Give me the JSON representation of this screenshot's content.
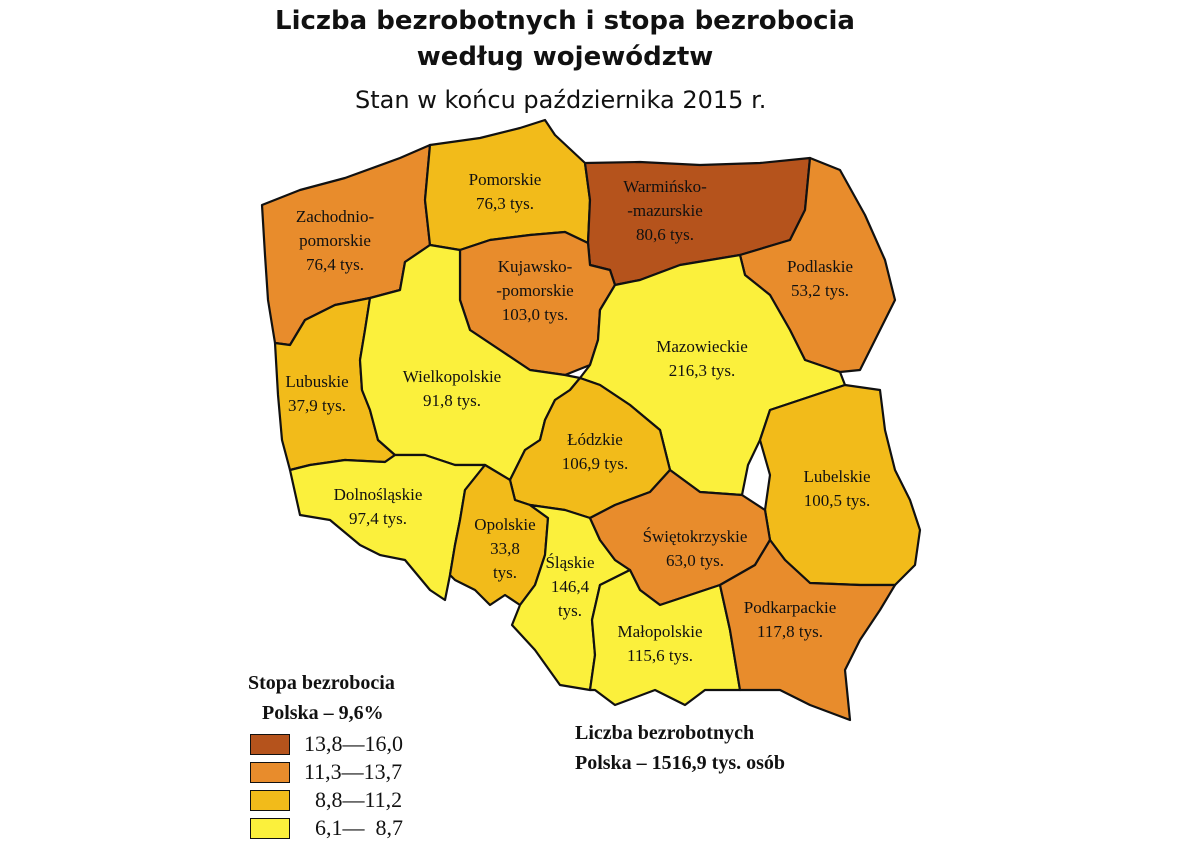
{
  "title_line1": "Liczba bezrobotnych i stopa bezrobocia",
  "title_line2": "według województw",
  "subtitle": "Stan w końcu października 2015 r.",
  "colors": {
    "c1": "#B5531C",
    "c2": "#E88C2C",
    "c3": "#F2BB1A",
    "c4": "#FBF03C"
  },
  "regions": [
    {
      "id": "zachodniopomorskie",
      "lines": [
        "Zachodnio-",
        "pomorskie",
        "76,4 tys."
      ],
      "class": "c2"
    },
    {
      "id": "pomorskie",
      "lines": [
        "Pomorskie",
        "76,3 tys."
      ],
      "class": "c3"
    },
    {
      "id": "warminsko-mazurskie",
      "lines": [
        "Warmińsko-",
        "-mazurskie",
        "80,6 tys."
      ],
      "class": "c1"
    },
    {
      "id": "podlaskie",
      "lines": [
        "Podlaskie",
        "53,2 tys."
      ],
      "class": "c2"
    },
    {
      "id": "kujawsko-pomorskie",
      "lines": [
        "Kujawsko-",
        "-pomorskie",
        "103,0 tys."
      ],
      "class": "c2"
    },
    {
      "id": "mazowieckie",
      "lines": [
        "Mazowieckie",
        "216,3 tys."
      ],
      "class": "c4"
    },
    {
      "id": "lubuskie",
      "lines": [
        "Lubuskie",
        "37,9 tys."
      ],
      "class": "c3"
    },
    {
      "id": "wielkopolskie",
      "lines": [
        "Wielkopolskie",
        "91,8 tys."
      ],
      "class": "c4"
    },
    {
      "id": "lodzkie",
      "lines": [
        "Łódzkie",
        "106,9 tys."
      ],
      "class": "c3"
    },
    {
      "id": "lubelskie",
      "lines": [
        "Lubelskie",
        "100,5 tys."
      ],
      "class": "c3"
    },
    {
      "id": "dolnoslaskie",
      "lines": [
        "Dolnośląskie",
        "97,4 tys."
      ],
      "class": "c4"
    },
    {
      "id": "opolskie",
      "lines": [
        "Opolskie",
        "33,8",
        "tys."
      ],
      "class": "c3"
    },
    {
      "id": "slaskie",
      "lines": [
        "Śląskie",
        "146,4",
        "tys."
      ],
      "class": "c4"
    },
    {
      "id": "swietokrzyskie",
      "lines": [
        "Świętokrzyskie",
        "63,0 tys."
      ],
      "class": "c2"
    },
    {
      "id": "malopolskie",
      "lines": [
        "Małopolskie",
        "115,6 tys."
      ],
      "class": "c4"
    },
    {
      "id": "podkarpackie",
      "lines": [
        "Podkarpackie",
        "117,8 tys."
      ],
      "class": "c2"
    }
  ],
  "legend": {
    "heading1": "Stopa bezrobocia",
    "heading2": "Polska – 9,6%",
    "items": [
      {
        "label": "13,8—16,0",
        "class": "c1"
      },
      {
        "label": "11,3—13,7",
        "class": "c2"
      },
      {
        "label": "  8,8—11,2",
        "class": "c3"
      },
      {
        "label": "  6,1—  8,7",
        "class": "c4"
      }
    ]
  },
  "count_heading1": "Liczba bezrobotnych",
  "count_heading2": "Polska – 1516,9 tys. osób"
}
